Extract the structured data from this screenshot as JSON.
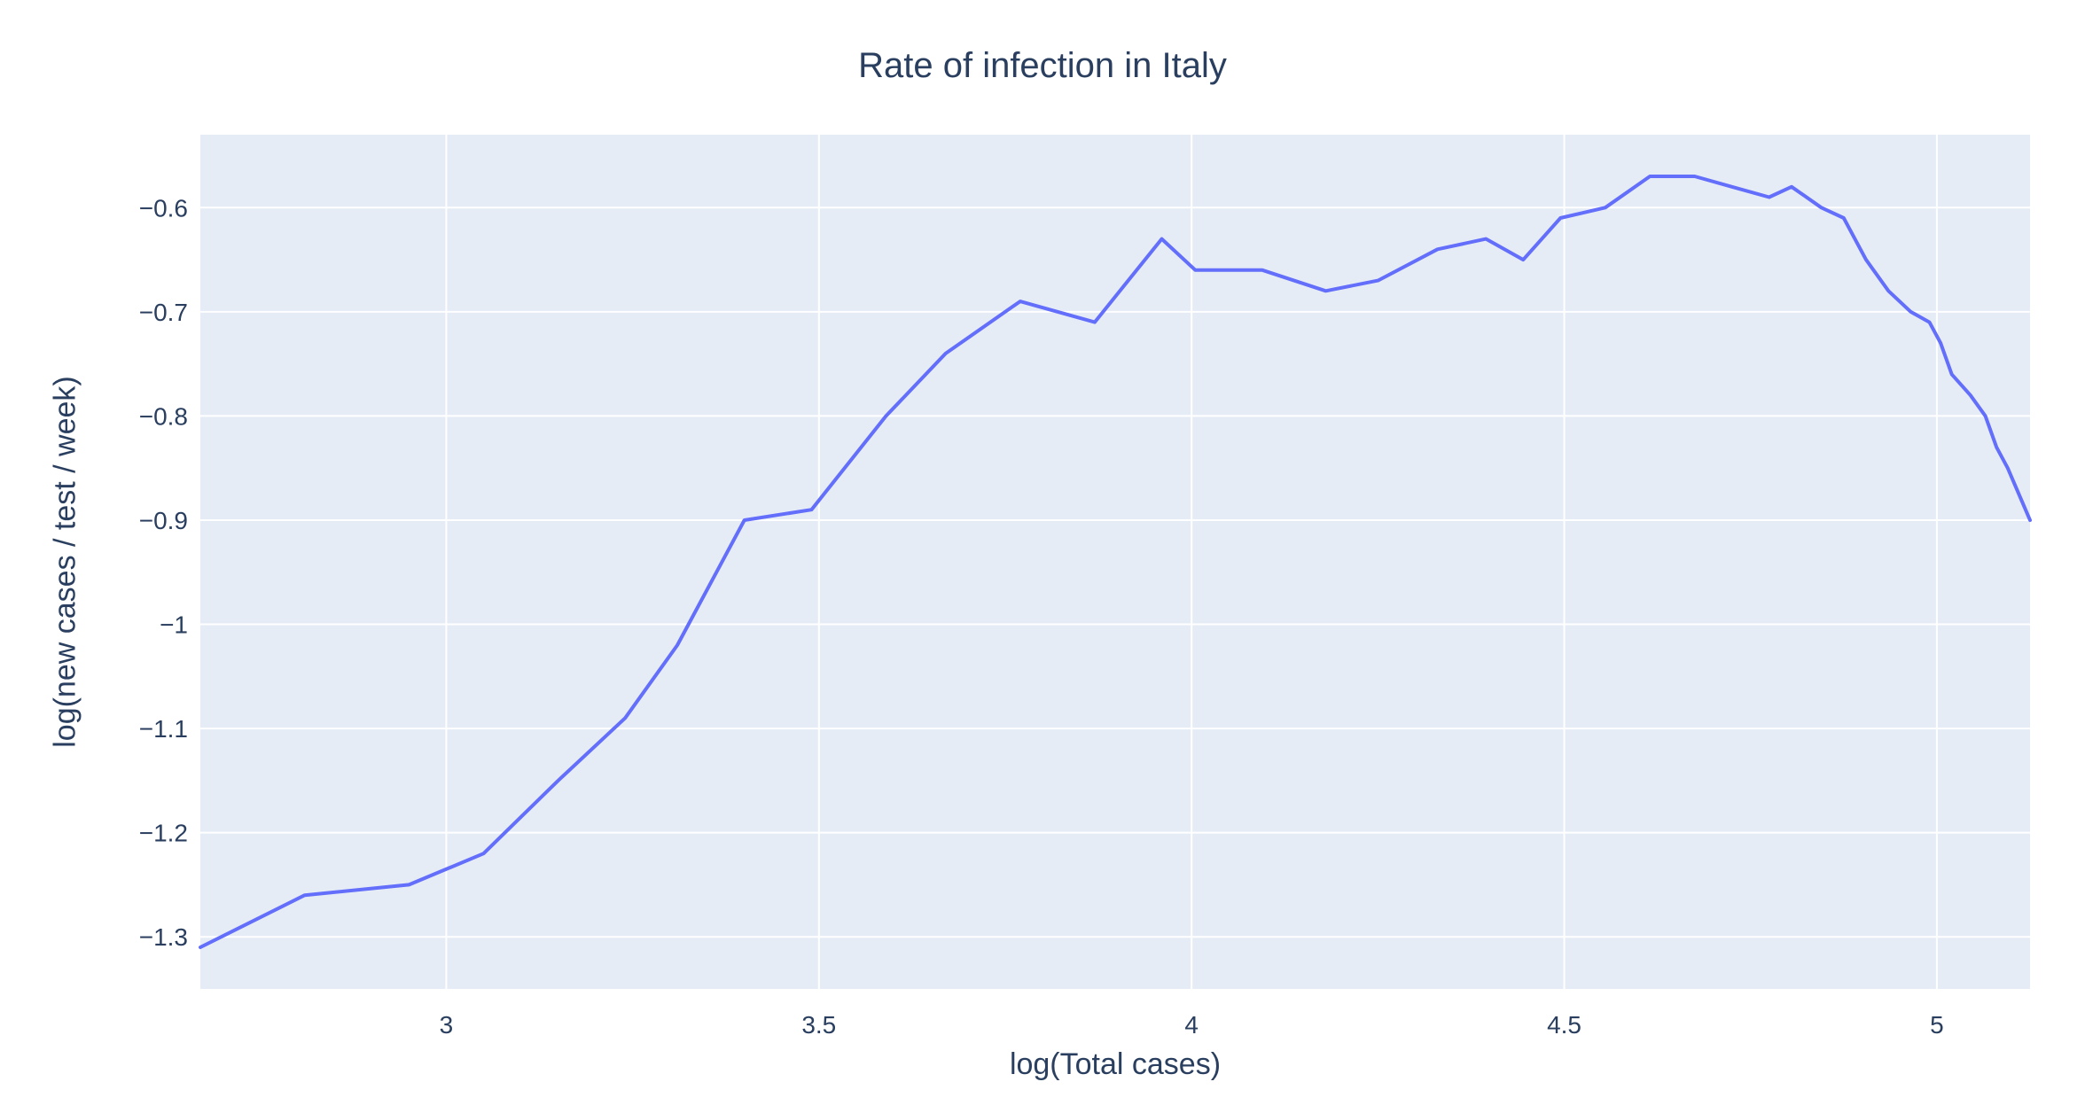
{
  "chart_data": {
    "type": "line",
    "title": "Rate of infection in Italy",
    "xlabel": "log(Total cases)",
    "ylabel": "log(new cases / test / week)",
    "xlim": [
      2.67,
      5.125
    ],
    "ylim": [
      -1.35,
      -0.53
    ],
    "xticks": [
      3,
      3.5,
      4,
      4.5,
      5
    ],
    "xtick_labels": [
      "3",
      "3.5",
      "4",
      "4.5",
      "5"
    ],
    "yticks": [
      -0.6,
      -0.7,
      -0.8,
      -0.9,
      -1,
      -1.1,
      -1.2,
      -1.3
    ],
    "ytick_labels": [
      "−0.6",
      "−0.7",
      "−0.8",
      "−0.9",
      "−1",
      "−1.1",
      "−1.2",
      "−1.3"
    ],
    "grid": true,
    "colors": {
      "line": "#636efa",
      "plot_bg": "#e5ecf6",
      "grid": "#ffffff",
      "text": "#2a3f5f"
    },
    "series": [
      {
        "x": [
          2.67,
          2.81,
          2.95,
          3.05,
          3.15,
          3.24,
          3.31,
          3.4,
          3.49,
          3.59,
          3.67,
          3.77,
          3.87,
          3.96,
          4.005,
          4.095,
          4.18,
          4.25,
          4.33,
          4.395,
          4.445,
          4.495,
          4.555,
          4.615,
          4.675,
          4.725,
          4.775,
          4.805,
          4.845,
          4.875,
          4.905,
          4.935,
          4.965,
          4.99,
          5.005,
          5.02,
          5.045,
          5.065,
          5.08,
          5.095,
          5.125
        ],
        "y": [
          -1.31,
          -1.26,
          -1.25,
          -1.22,
          -1.15,
          -1.09,
          -1.02,
          -0.9,
          -0.89,
          -0.8,
          -0.74,
          -0.69,
          -0.71,
          -0.63,
          -0.66,
          -0.66,
          -0.68,
          -0.67,
          -0.64,
          -0.63,
          -0.65,
          -0.61,
          -0.6,
          -0.57,
          -0.57,
          -0.58,
          -0.59,
          -0.58,
          -0.6,
          -0.61,
          -0.65,
          -0.68,
          -0.7,
          -0.71,
          -0.73,
          -0.76,
          -0.78,
          -0.8,
          -0.83,
          -0.85,
          -0.9
        ]
      }
    ]
  }
}
